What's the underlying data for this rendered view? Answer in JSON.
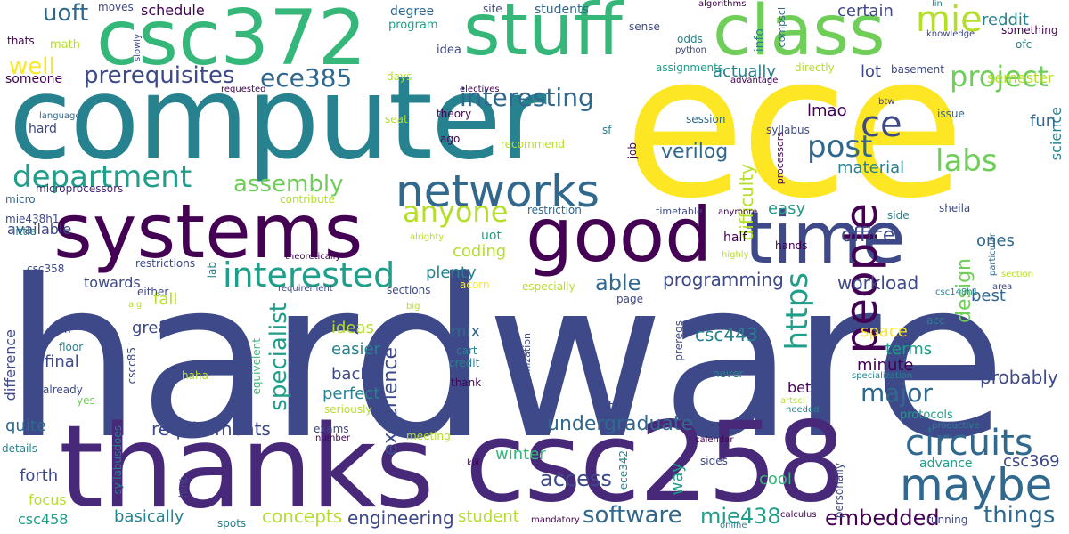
{
  "colors": {
    "yellow": "#fde725",
    "lime": "#b5de2b",
    "green": "#6ece58",
    "sea": "#35b779",
    "teal": "#1f9e89",
    "cyan": "#26828e",
    "steel": "#31688e",
    "slate": "#3e4989",
    "indigo": "#482878",
    "purple": "#440154"
  },
  "words": {
    "hardware": "hardware",
    "computer": "computer",
    "ece": "ece",
    "thanks": "thanks",
    "csc258": "csc258",
    "csc372": "csc372",
    "stuff": "stuff",
    "class": "class",
    "systems": "systems",
    "good": "good",
    "time": "time",
    "people": "people",
    "networks": "networks",
    "department": "department",
    "circuits": "circuits",
    "maybe": "maybe",
    "interested": "interested",
    "anyone": "anyone",
    "mie": "mie",
    "interesting": "interesting",
    "project": "project",
    "prerequisites": "prerequisites",
    "ece385": "ece385",
    "uoft": "uoft",
    "well": "well",
    "post": "post",
    "ce": "ce",
    "labs": "labs",
    "https": "https",
    "specialist": "specialist",
    "assembly": "assembly",
    "design": "design",
    "embedded": "embedded",
    "software": "software",
    "things": "things",
    "mie438": "mie438",
    "engineering": "engineering",
    "concepts": "concepts",
    "access": "access",
    "undergraduate": "undergraduate",
    "requirements": "requirements",
    "major": "major",
    "experience": "experience",
    "programming": "programming",
    "workload": "workload",
    "office": "office",
    "difficulty": "difficulty",
    "verilog": "verilog",
    "csc369": "csc369",
    "probably": "probably",
    "csc443": "csc443",
    "certain": "certain",
    "reddit": "reddit",
    "semester": "semester",
    "science": "science",
    "material": "material",
    "lmao": "lmao",
    "actually": "actually",
    "lot": "lot",
    "fun": "fun",
    "easy": "easy",
    "ones": "ones",
    "best": "best",
    "coding": "coding",
    "plenty": "plenty",
    "able": "able",
    "great": "great",
    "final": "final",
    "towards": "towards",
    "fall": "fall",
    "ideas": "ideas",
    "easier": "easier",
    "back": "back",
    "perfect": "perfect",
    "mix": "mix",
    "minute": "minute",
    "terms": "terms",
    "space": "space",
    "bet": "bet",
    "quite": "quite",
    "forth": "forth",
    "focus": "focus",
    "basically": "basically",
    "csc458": "csc458",
    "student": "student",
    "winter": "winter",
    "cool": "cool",
    "advance": "advance",
    "way": "way",
    "difference": "difference",
    "available": "available",
    "someone": "someone",
    "math": "math",
    "thats": "thats",
    "schedule": "schedule",
    "moves": "moves",
    "degree": "degree",
    "program": "program",
    "idea": "idea",
    "students": "students",
    "site": "site",
    "hard": "hard",
    "info": "info",
    "odds": "odds",
    "uot": "uot",
    "job": "job",
    "half": "half",
    "hands": "hands",
    "bit": "bit",
    "acc": "acc",
    "microprocessors": "microprocessors",
    "restrictions": "restrictions",
    "csc358": "csc358",
    "little": "little",
    "micro": "micro",
    "mie438h1": "mie438h1",
    "language": "language",
    "cscc85": "cscc85",
    "ton": "ton",
    "floor": "floor",
    "already": "already",
    "yes": "yes",
    "details": "details",
    "theory": "theory",
    "ago": "ago",
    "sf": "sf",
    "seat": "seat",
    "days": "days",
    "recommend": "recommend",
    "assignments": "assignments",
    "directly": "directly",
    "basement": "basement",
    "btw": "btw",
    "session": "session",
    "issue": "issue",
    "syllabus": "syllabus",
    "processors": "processors",
    "side": "side",
    "sheila": "sheila",
    "timetable": "timetable",
    "restriction": "restriction",
    "contribute": "contribute",
    "especially": "especially",
    "acorn": "acorn",
    "sections": "sections",
    "either": "either",
    "requirement": "requirement",
    "theoretically": "theoretically",
    "alrighty": "alrighty",
    "lab": "lab",
    "highly": "highly",
    "anymore": "anymore",
    "area": "area",
    "csc148h1": "csc148h1",
    "page": "page",
    "equivelent": "equivelent",
    "haha": "haha",
    "cart": "cart",
    "credit": "credit",
    "thank": "thank",
    "seriously": "seriously",
    "organization": "organization",
    "prereqs": "prereqs",
    "never": "never",
    "specialization": "specialization",
    "artsci": "artsci",
    "needed": "needed",
    "protocols": "protocols",
    "productive": "productive",
    "calendar": "calendar",
    "personally": "personally",
    "sides": "sides",
    "running": "running",
    "calculus": "calculus",
    "online": "online",
    "mandatory": "mandatory",
    "spots": "spots",
    "hint": "hint",
    "syllabusdoes": "syllabusdoes",
    "number": "number",
    "exams": "exams",
    "meeting": "meeting",
    "kill": "kill",
    "ece342": "ece342",
    "algorithms": "algorithms",
    "compsci": "compsci",
    "sense": "sense",
    "python": "python",
    "lin": "lin",
    "knowledge": "knowledge",
    "something": "something",
    "ofc": "ofc",
    "slowly": "slowly",
    "requested": "requested",
    "electives": "electives",
    "advantage": "advantage",
    "particular": "particular",
    "section": "section",
    "big": "big",
    "alg": "alg"
  }
}
